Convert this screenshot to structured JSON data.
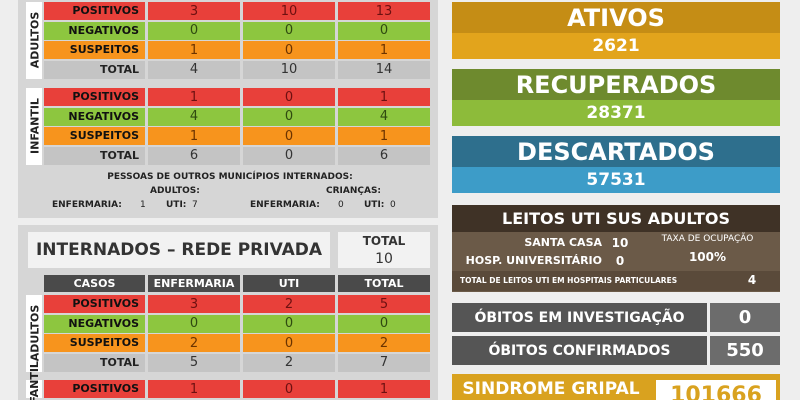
{
  "public_table": {
    "groups": [
      {
        "label": "ADULTOS",
        "rows": [
          {
            "label": "POSITIVOS",
            "values": [
              3,
              10,
              13
            ]
          },
          {
            "label": "NEGATIVOS",
            "values": [
              0,
              0,
              0
            ]
          },
          {
            "label": "SUSPEITOS",
            "values": [
              1,
              0,
              1
            ]
          },
          {
            "label": "TOTAL",
            "values": [
              4,
              10,
              14
            ]
          }
        ]
      },
      {
        "label": "INFANTIL",
        "rows": [
          {
            "label": "POSITIVOS",
            "values": [
              1,
              0,
              1
            ]
          },
          {
            "label": "NEGATIVOS",
            "values": [
              4,
              0,
              4
            ]
          },
          {
            "label": "SUSPEITOS",
            "values": [
              1,
              0,
              1
            ]
          },
          {
            "label": "TOTAL",
            "values": [
              6,
              0,
              6
            ]
          }
        ]
      }
    ]
  },
  "other_municipalities": {
    "title": "PESSOAS DE OUTROS MUNICÍPIOS INTERNADOS:",
    "adults": {
      "label": "ADULTOS:",
      "enfermaria_label": "ENFERMARIA:",
      "enfermaria": 1,
      "uti_label": "UTI:",
      "uti": 7
    },
    "children": {
      "label": "CRIANÇAS:",
      "enfermaria_label": "ENFERMARIA:",
      "enfermaria": 0,
      "uti_label": "UTI:",
      "uti": 0
    }
  },
  "private_table": {
    "title": "INTERNADOS – REDE PRIVADA",
    "total_label": "TOTAL",
    "total": 10,
    "columns": [
      "CASOS",
      "ENFERMARIA",
      "UTI",
      "TOTAL"
    ],
    "groups": [
      {
        "label": "ADULTOS",
        "rows": [
          {
            "label": "POSITIVOS",
            "values": [
              3,
              2,
              5
            ]
          },
          {
            "label": "NEGATIVOS",
            "values": [
              0,
              0,
              0
            ]
          },
          {
            "label": "SUSPEITOS",
            "values": [
              2,
              0,
              2
            ]
          },
          {
            "label": "TOTAL",
            "values": [
              5,
              2,
              7
            ]
          }
        ]
      },
      {
        "label": "INFANTIL",
        "rows": [
          {
            "label": "POSITIVOS",
            "values": [
              1,
              0,
              1
            ]
          }
        ]
      }
    ]
  },
  "ativos": {
    "label": "ATIVOS",
    "value": 2621
  },
  "recuperados": {
    "label": "RECUPERADOS",
    "value": 28371
  },
  "descartados": {
    "label": "DESCARTADOS",
    "value": 57531
  },
  "leitos": {
    "title": "LEITOS UTI SUS ADULTOS",
    "santa_casa_label": "SANTA CASA",
    "santa_casa": 10,
    "hu_label": "HOSP. UNIVERSITÁRIO",
    "hu": 0,
    "taxa_label": "TAXA DE OCUPAÇÃO",
    "taxa": "100%",
    "particulares_label": "TOTAL DE LEITOS UTI EM HOSPITAIS PARTICULARES",
    "particulares": 4
  },
  "obitos_investigacao": {
    "label": "ÓBITOS EM INVESTIGAÇÃO",
    "value": 0
  },
  "obitos_confirmados": {
    "label": "ÓBITOS CONFIRMADOS",
    "value": 550
  },
  "sindrome_gripal": {
    "label": "SINDROME GRIPAL",
    "value": 101666
  }
}
